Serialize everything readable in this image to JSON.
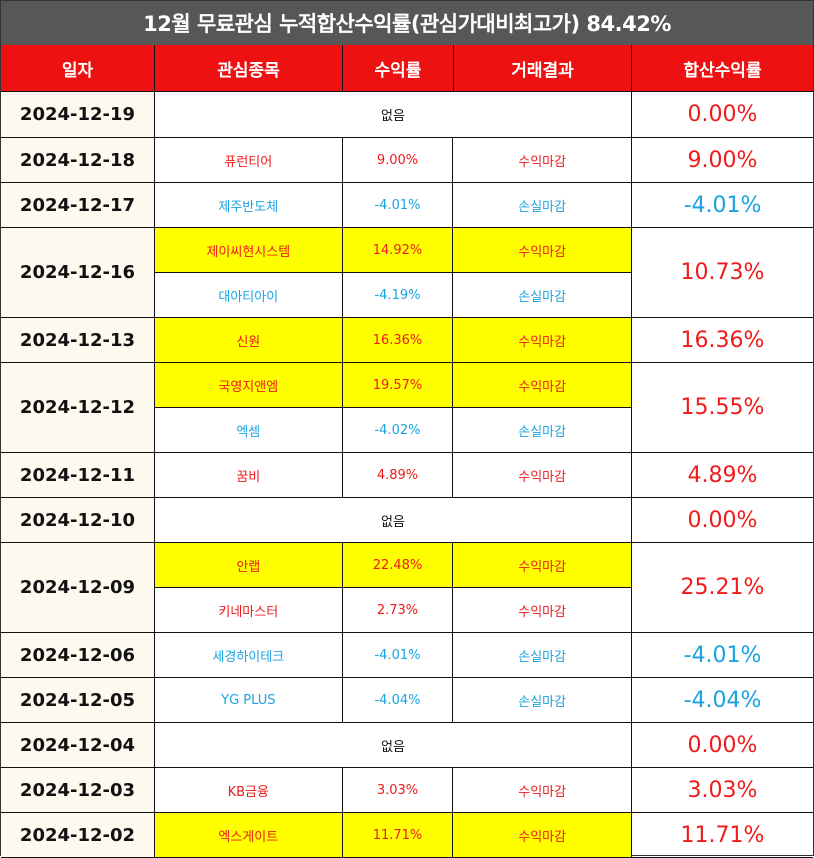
{
  "title": "12월 무료관심 누적합산수익률(관심가대비최고가) 84.42%",
  "headers": [
    "일자",
    "관심종목",
    "수익률",
    "거래결과",
    "합산수익률"
  ],
  "colors": {
    "header_bg": "#ee1111",
    "title_bg": "#575757",
    "profit": "#f01a1a",
    "loss": "#1aa3e0",
    "highlight": "#ffff00"
  },
  "rows": [
    {
      "date": "2024-12-19",
      "none_text": "없음",
      "items": [],
      "total": "0.00%",
      "total_color": "red",
      "height": 46
    },
    {
      "date": "2024-12-18",
      "items": [
        {
          "name": "퓨런티어",
          "pct": "9.00%",
          "result": "수익마감",
          "color": "red",
          "highlight": false
        }
      ],
      "total": "9.00%",
      "total_color": "red",
      "height": 45
    },
    {
      "date": "2024-12-17",
      "items": [
        {
          "name": "제주반도체",
          "pct": "-4.01%",
          "result": "손실마감",
          "color": "blue",
          "highlight": false
        }
      ],
      "total": "-4.01%",
      "total_color": "blue",
      "height": 45
    },
    {
      "date": "2024-12-16",
      "items": [
        {
          "name": "제이씨현시스템",
          "pct": "14.92%",
          "result": "수익마감",
          "color": "red",
          "highlight": true
        },
        {
          "name": "대아티아이",
          "pct": "-4.19%",
          "result": "손실마감",
          "color": "blue",
          "highlight": false
        }
      ],
      "total": "10.73%",
      "total_color": "red",
      "height": 90
    },
    {
      "date": "2024-12-13",
      "items": [
        {
          "name": "신원",
          "pct": "16.36%",
          "result": "수익마감",
          "color": "red",
          "highlight": true
        }
      ],
      "total": "16.36%",
      "total_color": "red",
      "height": 45
    },
    {
      "date": "2024-12-12",
      "items": [
        {
          "name": "국영지앤엠",
          "pct": "19.57%",
          "result": "수익마감",
          "color": "red",
          "highlight": true
        },
        {
          "name": "엑셈",
          "pct": "-4.02%",
          "result": "손실마감",
          "color": "blue",
          "highlight": false
        }
      ],
      "total": "15.55%",
      "total_color": "red",
      "height": 90
    },
    {
      "date": "2024-12-11",
      "items": [
        {
          "name": "꿈비",
          "pct": "4.89%",
          "result": "수익마감",
          "color": "red",
          "highlight": false
        }
      ],
      "total": "4.89%",
      "total_color": "red",
      "height": 45
    },
    {
      "date": "2024-12-10",
      "none_text": "없음",
      "items": [],
      "total": "0.00%",
      "total_color": "red",
      "height": 45
    },
    {
      "date": "2024-12-09",
      "items": [
        {
          "name": "안랩",
          "pct": "22.48%",
          "result": "수익마감",
          "color": "red",
          "highlight": true
        },
        {
          "name": "키네마스터",
          "pct": "2.73%",
          "result": "수익마감",
          "color": "red",
          "highlight": false
        }
      ],
      "total": "25.21%",
      "total_color": "red",
      "height": 90
    },
    {
      "date": "2024-12-06",
      "items": [
        {
          "name": "세경하이테크",
          "pct": "-4.01%",
          "result": "손실마감",
          "color": "blue",
          "highlight": false
        }
      ],
      "total": "-4.01%",
      "total_color": "blue",
      "height": 45
    },
    {
      "date": "2024-12-05",
      "items": [
        {
          "name": "YG PLUS",
          "pct": "-4.04%",
          "result": "손실마감",
          "color": "blue",
          "highlight": false
        }
      ],
      "total": "-4.04%",
      "total_color": "blue",
      "height": 45
    },
    {
      "date": "2024-12-04",
      "none_text": "없음",
      "items": [],
      "total": "0.00%",
      "total_color": "red",
      "height": 45
    },
    {
      "date": "2024-12-03",
      "items": [
        {
          "name": "KB금융",
          "pct": "3.03%",
          "result": "수익마감",
          "color": "red",
          "highlight": false
        }
      ],
      "total": "3.03%",
      "total_color": "red",
      "height": 45
    },
    {
      "date": "2024-12-02",
      "items": [
        {
          "name": "엑스게이트",
          "pct": "11.71%",
          "result": "수익마감",
          "color": "red",
          "highlight": true
        }
      ],
      "total": "11.71%",
      "total_color": "red",
      "height": 45
    }
  ]
}
